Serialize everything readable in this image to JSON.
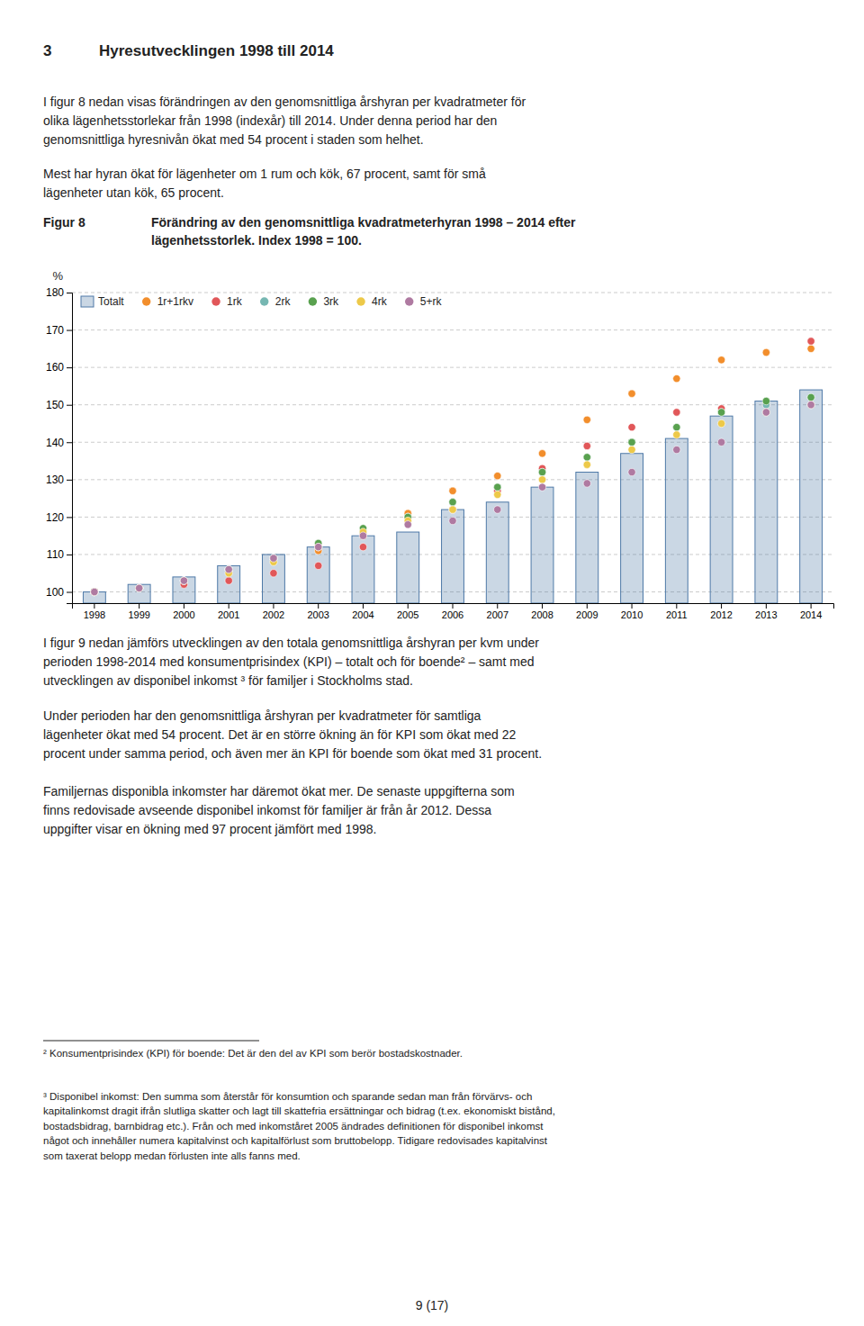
{
  "heading_number": "3",
  "heading_text": "Hyresutvecklingen 1998 till 2014",
  "paragraphs_before": [
    [
      "I figur 8 nedan visas förändringen av den genomsnittliga årshyran per kvadratmeter för",
      "olika lägenhetsstorlekar från 1998 (indexår) till 2014. Under denna period har den",
      "genomsnittliga hyresnivån ökat med 54 procent i staden som helhet."
    ],
    [
      "Mest har hyran ökat för lägenheter om 1 rum och kök, 67 procent, samt för små",
      "lägenheter utan kök, 65 procent."
    ]
  ],
  "chart_data": {
    "type": "bar",
    "title": "Figur 8",
    "subtitle": [
      "Förändring av den genomsnittliga kvadratmeterhyran 1998 – 2014 efter",
      "lägenhetsstorlek. Index 1998 = 100."
    ],
    "y_label": "%",
    "categories": [
      1998,
      1999,
      2000,
      2001,
      2002,
      2003,
      2004,
      2005,
      2006,
      2007,
      2008,
      2009,
      2010,
      2011,
      2012,
      2013,
      2014
    ],
    "series": [
      {
        "name": "Totalt",
        "type": "bar",
        "values": [
          100,
          102,
          104,
          107,
          110,
          112,
          115,
          116,
          122,
          124,
          128,
          132,
          137,
          141,
          147,
          151,
          154
        ]
      },
      {
        "name": "1r+1rkv",
        "type": "scatter",
        "marker": "circle",
        "values": [
          100,
          101,
          103,
          106,
          109,
          111,
          115,
          121,
          127,
          131,
          137,
          146,
          153,
          157,
          162,
          164,
          165
        ]
      },
      {
        "name": "1rk",
        "type": "scatter",
        "marker": "circle",
        "values": [
          100,
          101,
          102,
          103,
          105,
          107,
          112,
          120,
          122,
          127,
          133,
          139,
          144,
          148,
          149,
          150,
          167
        ]
      },
      {
        "name": "2rk",
        "type": "scatter",
        "marker": "circle",
        "values": [
          100,
          101,
          103,
          106,
          109,
          112,
          116,
          120,
          124,
          128,
          132,
          136,
          140,
          144,
          148,
          150,
          152
        ]
      },
      {
        "name": "3rk",
        "type": "scatter",
        "marker": "circle",
        "values": [
          100,
          101,
          103,
          106,
          109,
          113,
          117,
          120,
          124,
          128,
          132,
          136,
          140,
          144,
          148,
          151,
          152
        ]
      },
      {
        "name": "4rk",
        "type": "scatter",
        "marker": "circle",
        "values": [
          100,
          101,
          103,
          105,
          108,
          112,
          116,
          119,
          122,
          126,
          130,
          134,
          138,
          142,
          145,
          148,
          150
        ]
      },
      {
        "name": "5+rk",
        "type": "scatter",
        "marker": "circle",
        "values": [
          100,
          101,
          103,
          106,
          109,
          112,
          115,
          118,
          119,
          122,
          128,
          129,
          132,
          138,
          140,
          148,
          150
        ]
      }
    ],
    "ylim": [
      97,
      180
    ],
    "yticks": [
      100,
      110,
      120,
      130,
      140,
      150,
      160,
      170,
      180
    ],
    "grid": true,
    "legend": "upper left"
  },
  "paragraphs_after": [
    [
      "I figur 9 nedan jämförs utvecklingen av den totala genomsnittliga årshyran per kvm under",
      "perioden 1998-2014 med konsumentprisindex (KPI) – totalt och för boende² – samt med",
      "utvecklingen av disponibel inkomst ³ för familjer i Stockholms stad."
    ],
    [
      "Under perioden har den genomsnittliga årshyran per kvadratmeter för samtliga",
      "lägenheter ökat med 54 procent. Det är en större ökning än för KPI som ökat med 22",
      "procent under samma period, och även mer än KPI för boende som ökat med 31 procent."
    ],
    [
      "Familjernas disponibla inkomster har däremot ökat mer. De senaste uppgifterna som",
      "finns redovisade avseende disponibel inkomst för familjer är från år 2012. Dessa",
      "uppgifter visar en ökning med 97 procent jämfört med 1998."
    ]
  ],
  "footnotes": [
    [
      "² Konsumentprisindex (KPI) för boende: Det är den del av KPI som berör bostadskostnader."
    ],
    [
      "³ Disponibel inkomst: Den summa som återstår för konsumtion och sparande sedan man från förvärvs- och",
      "kapitalinkomst dragit ifrån slutliga skatter och lagt till skattefria ersättningar och bidrag (t.ex. ekonomiskt bistånd,",
      "bostadsbidrag, barnbidrag etc.). Från och med inkomståret 2005 ändrades definitionen för disponibel inkomst",
      "något och innehåller numera kapitalvinst och kapitalförlust som bruttobelopp. Tidigare redovisades kapitalvinst",
      "som taxerat belopp medan förlusten inte alls fanns med."
    ]
  ],
  "page_number": "9 (17)"
}
